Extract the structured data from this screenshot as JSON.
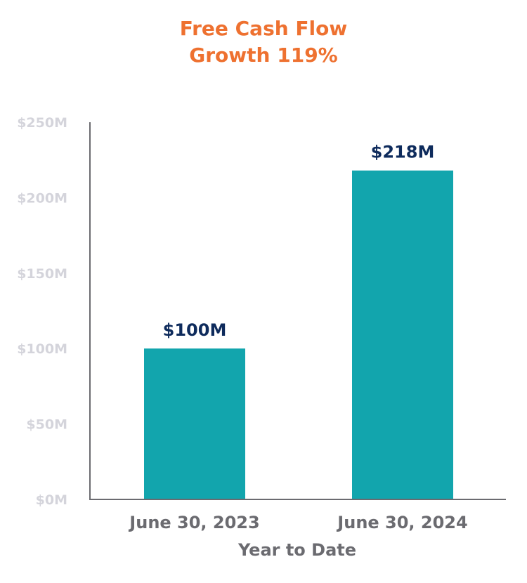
{
  "colors": {
    "title": "#EE7130",
    "bar": "#12A5AD",
    "data_label": "#0E2B5C",
    "tick_label": "#D4D4DB",
    "category_label": "#6B6B70",
    "axis": "#6B6B70"
  },
  "chart_data": {
    "type": "bar",
    "title": "Free Cash Flow",
    "subtitle": "Growth 119%",
    "categories": [
      "June 30, 2023",
      "June 30, 2024"
    ],
    "values": [
      100,
      218
    ],
    "data_labels": [
      "$100M",
      "$218M"
    ],
    "xlabel": "Year to Date",
    "ylabel": "",
    "ylim": [
      0,
      250
    ],
    "yticks": [
      0,
      50,
      100,
      150,
      200,
      250
    ],
    "ytick_labels": [
      "$0M",
      "$50M",
      "$100M",
      "$150M",
      "$200M",
      "$250M"
    ],
    "grid": false,
    "legend": "none"
  }
}
